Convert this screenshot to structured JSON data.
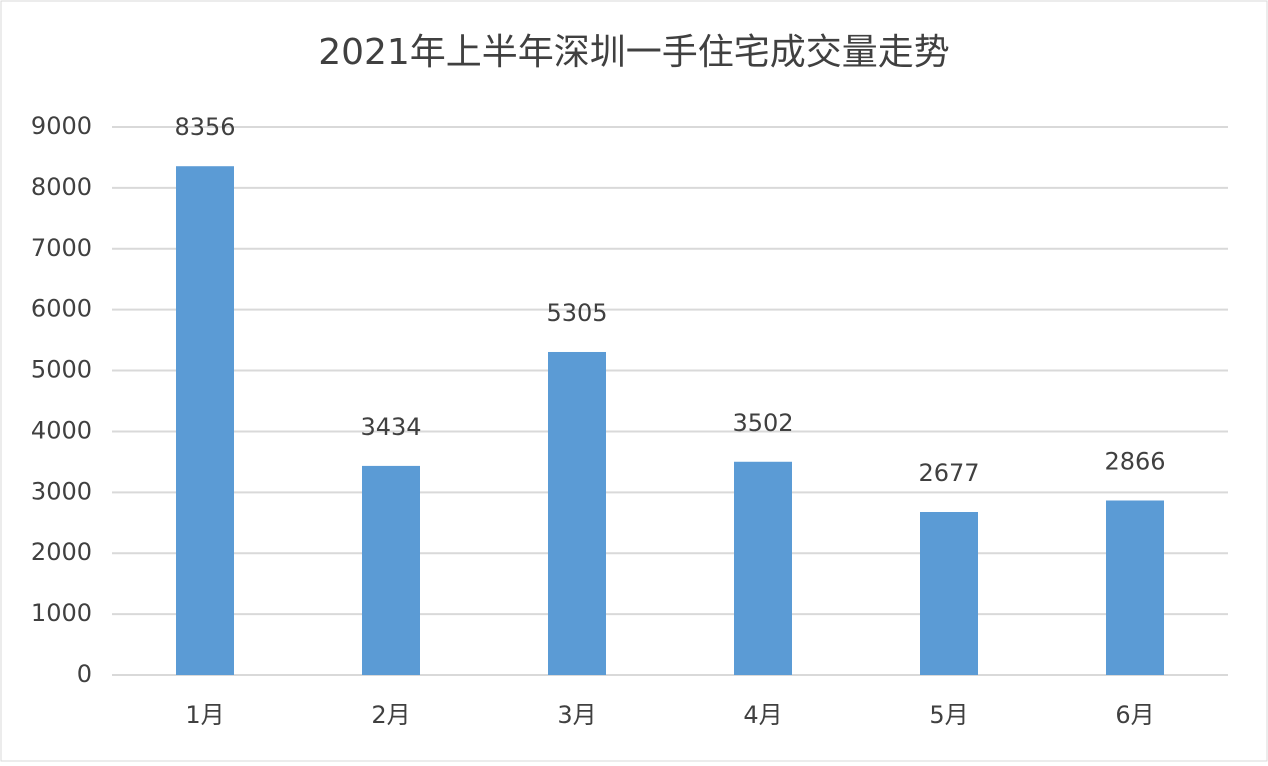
{
  "chart_data": {
    "type": "bar",
    "title": "2021年上半年深圳一手住宅成交量走势",
    "categories": [
      "1月",
      "2月",
      "3月",
      "4月",
      "5月",
      "6月"
    ],
    "values": [
      8356,
      3434,
      5305,
      3502,
      2677,
      2866
    ],
    "color": "#5b9bd5",
    "ylim": [
      0,
      9000
    ],
    "yticks": [
      0,
      1000,
      2000,
      3000,
      4000,
      5000,
      6000,
      7000,
      8000,
      9000
    ],
    "grid": true
  }
}
